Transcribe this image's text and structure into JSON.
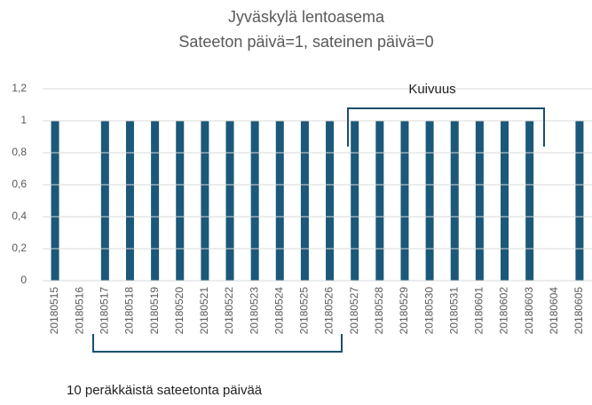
{
  "chart_data": {
    "type": "bar",
    "title": "Jyväskylä lentoasema",
    "subtitle": "Sateeton päivä=1, sateinen päivä=0",
    "categories": [
      "20180515",
      "20180516",
      "20180517",
      "20180518",
      "20180519",
      "20180520",
      "20180521",
      "20180522",
      "20180523",
      "20180524",
      "20180525",
      "20180526",
      "20180527",
      "20180528",
      "20180529",
      "20180530",
      "20180531",
      "20180601",
      "20180602",
      "20180603",
      "20180604",
      "20180605"
    ],
    "values": [
      1,
      0,
      1,
      1,
      1,
      1,
      1,
      1,
      1,
      1,
      1,
      1,
      1,
      1,
      1,
      1,
      1,
      1,
      1,
      1,
      0,
      1
    ],
    "color": "#1b5879",
    "ylim": [
      0,
      1.2
    ],
    "yticks": [
      0,
      {
        "value": 0.2,
        "label": "0,2"
      },
      {
        "value": 0.4,
        "label": "0,4"
      },
      {
        "value": 0.6,
        "label": "0,6"
      },
      {
        "value": 0.8,
        "label": "0,8"
      },
      1,
      {
        "value": 1.2,
        "label": "1,2"
      }
    ],
    "grid": true,
    "annotations": [
      "Kuivuus",
      "10 peräkkäistä sateetonta päivää"
    ]
  }
}
